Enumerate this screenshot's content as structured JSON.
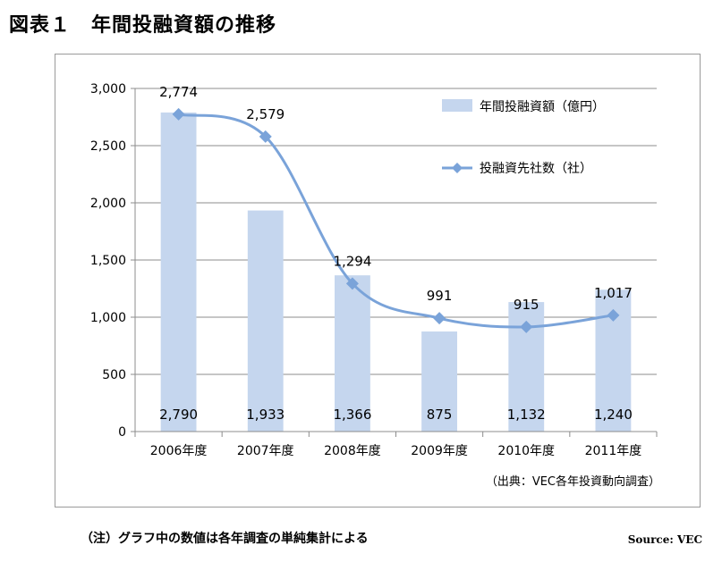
{
  "figure": {
    "title": "図表１　年間投融資額の推移",
    "note": "（注）グラフ中の数値は各年調査の単純集計による",
    "source": "Source: VEC"
  },
  "chart_data": {
    "type": "bar",
    "categories": [
      "2006年度",
      "2007年度",
      "2008年度",
      "2009年度",
      "2010年度",
      "2011年度"
    ],
    "ylim": [
      0,
      3000
    ],
    "yticks": [
      0,
      500,
      1000,
      1500,
      2000,
      2500,
      3000
    ],
    "ytick_labels": [
      "0",
      "500",
      "1,000",
      "1,500",
      "2,000",
      "2,500",
      "3,000"
    ],
    "grid": true,
    "legend_position": "top-right",
    "annotation": "（出典：VEC各年投資動向調査）",
    "series": [
      {
        "name": "年間投融資額（億円）",
        "type": "bar",
        "color": "#c5d6ee",
        "values": [
          2790,
          1933,
          1366,
          875,
          1132,
          1240
        ],
        "labels": [
          "2,790",
          "1,933",
          "1,366",
          "875",
          "1,132",
          "1,240"
        ]
      },
      {
        "name": "投融資先社数（社）",
        "type": "line",
        "color": "#7aa3d9",
        "values": [
          2774,
          2579,
          1294,
          991,
          915,
          1017
        ],
        "labels": [
          "2,774",
          "2,579",
          "1,294",
          "991",
          "915",
          "1,017"
        ]
      }
    ]
  }
}
